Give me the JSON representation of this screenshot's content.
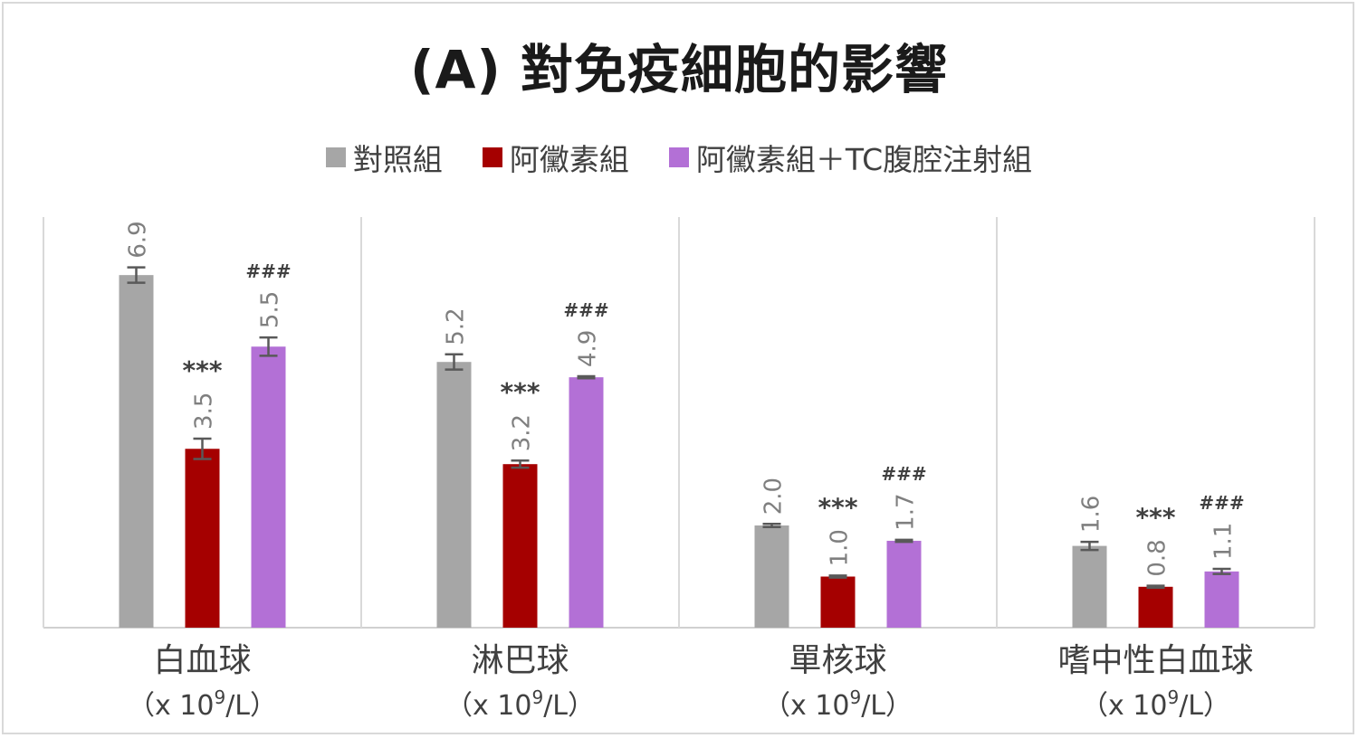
{
  "chart_data": {
    "type": "bar",
    "title": "(A) 對免疫細胞的影響",
    "categories": [
      {
        "name": "白血球",
        "unit": "（x 10",
        "unit_exp": "9",
        "unit_tail": "/L）"
      },
      {
        "name": "淋巴球",
        "unit": "（x 10",
        "unit_exp": "9",
        "unit_tail": "/L）"
      },
      {
        "name": "單核球",
        "unit": "（x 10",
        "unit_exp": "9",
        "unit_tail": "/L）"
      },
      {
        "name": "嗜中性白血球",
        "unit": "（x 10",
        "unit_exp": "9",
        "unit_tail": "/L）"
      }
    ],
    "series": [
      {
        "name": "對照組",
        "color": "#a6a6a6",
        "values": [
          6.9,
          5.2,
          2.0,
          1.6
        ],
        "labels": [
          "6.9",
          "5.2",
          "2.0",
          "1.6"
        ],
        "errors": [
          0.15,
          0.15,
          0.03,
          0.08
        ],
        "marks": [
          "",
          "",
          "",
          ""
        ]
      },
      {
        "name": "阿黴素組",
        "color": "#a50000",
        "values": [
          3.5,
          3.2,
          1.0,
          0.8
        ],
        "labels": [
          "3.5",
          "3.2",
          "1.0",
          "0.8"
        ],
        "errors": [
          0.2,
          0.07,
          0.02,
          0.02
        ],
        "marks": [
          "***",
          "***",
          "***",
          "***"
        ]
      },
      {
        "name": "阿黴素組＋TC腹腔注射組",
        "color": "#b370d6",
        "values": [
          5.5,
          4.9,
          1.7,
          1.1
        ],
        "labels": [
          "5.5",
          "4.9",
          "1.7",
          "1.1"
        ],
        "errors": [
          0.18,
          0.02,
          0.02,
          0.05
        ],
        "marks": [
          "###",
          "###",
          "###",
          "###"
        ]
      }
    ],
    "ylim": [
      0,
      8
    ],
    "grid": false,
    "legend_position": "top"
  }
}
